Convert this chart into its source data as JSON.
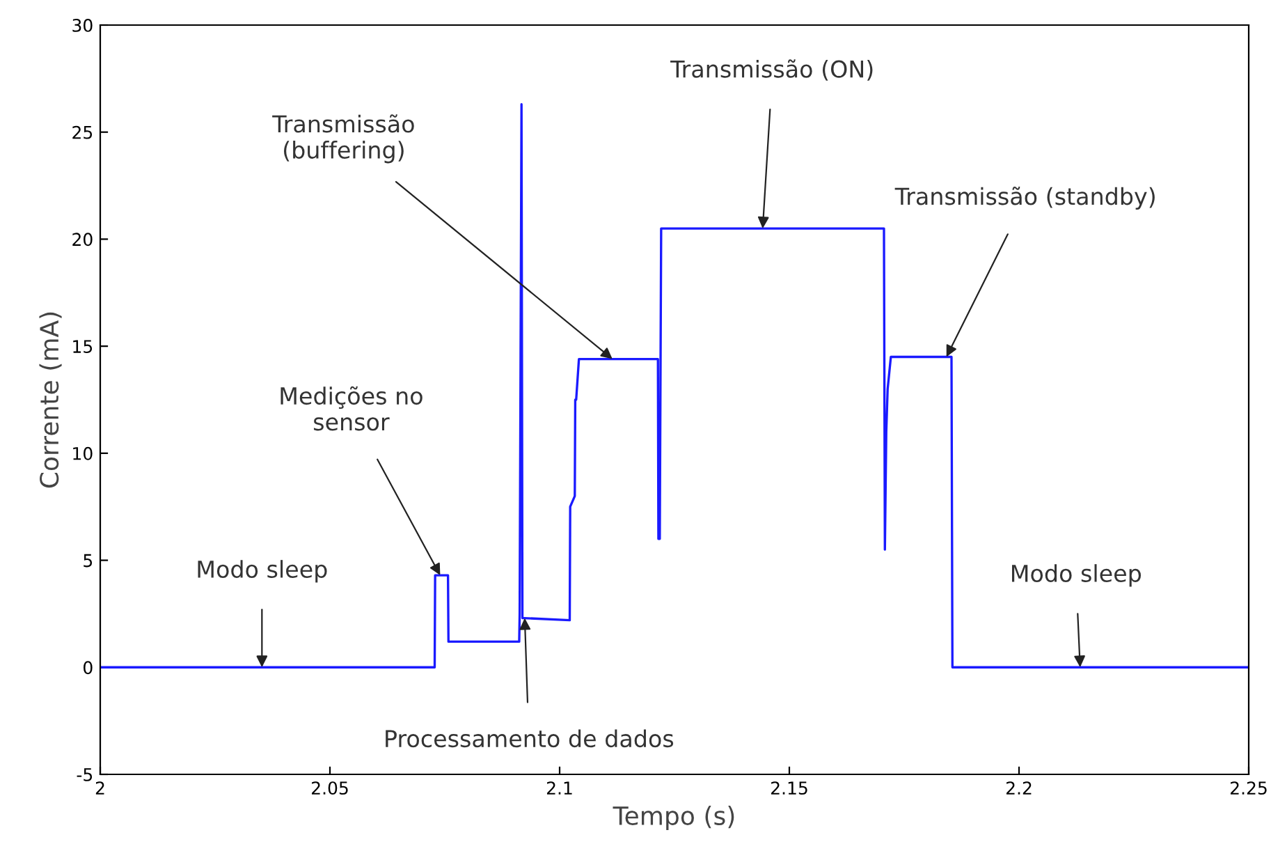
{
  "chart_data": {
    "type": "line",
    "xlabel": "Tempo (s)",
    "ylabel": "Corrente (mA)",
    "series": [
      {
        "color": "#1a1aff",
        "x": [
          2.0,
          2.0728,
          2.0729,
          2.0757,
          2.0758,
          2.0912,
          2.0913,
          2.0917,
          2.0919,
          2.0922,
          2.1022,
          2.1023,
          2.1033,
          2.1034,
          2.1036,
          2.1042,
          2.1214,
          2.1215,
          2.1218,
          2.1221,
          2.1706,
          2.1708,
          2.1711,
          2.1714,
          2.1721,
          2.1853,
          2.1855,
          2.25
        ],
        "values": [
          0,
          0,
          4.3,
          4.3,
          1.2,
          1.2,
          2.5,
          26.3,
          2.3,
          2.3,
          2.2,
          7.5,
          8.0,
          12.5,
          12.5,
          14.4,
          14.4,
          6.0,
          6.0,
          20.5,
          20.5,
          5.5,
          11,
          13,
          14.5,
          14.5,
          0,
          0
        ]
      }
    ],
    "xlim": [
      2.0,
      2.25
    ],
    "xticks": [
      2,
      2.05,
      2.1,
      2.15,
      2.2,
      2.25
    ],
    "ylim": [
      -5,
      30
    ],
    "yticks": [
      -5,
      0,
      5,
      10,
      15,
      20,
      25,
      30
    ],
    "grid": false,
    "marker": "none",
    "line_style": "solid",
    "annotations": [
      {
        "text": "Modo sleep",
        "x": 2.0352,
        "y": 0
      },
      {
        "text": "Medições no\nsensor",
        "x": 2.074,
        "y": 4.3
      },
      {
        "text": "Processamento de dados",
        "x": 2.0924,
        "y": 2.3
      },
      {
        "text": "Transmissão\n(buffering)",
        "x": 2.1115,
        "y": 14.4
      },
      {
        "text": "Transmissão (ON)",
        "x": 2.1442,
        "y": 20.5
      },
      {
        "text": "Transmissão (standby)",
        "x": 2.1842,
        "y": 14.5
      },
      {
        "text": "Modo sleep",
        "x": 2.2133,
        "y": 0
      }
    ]
  }
}
